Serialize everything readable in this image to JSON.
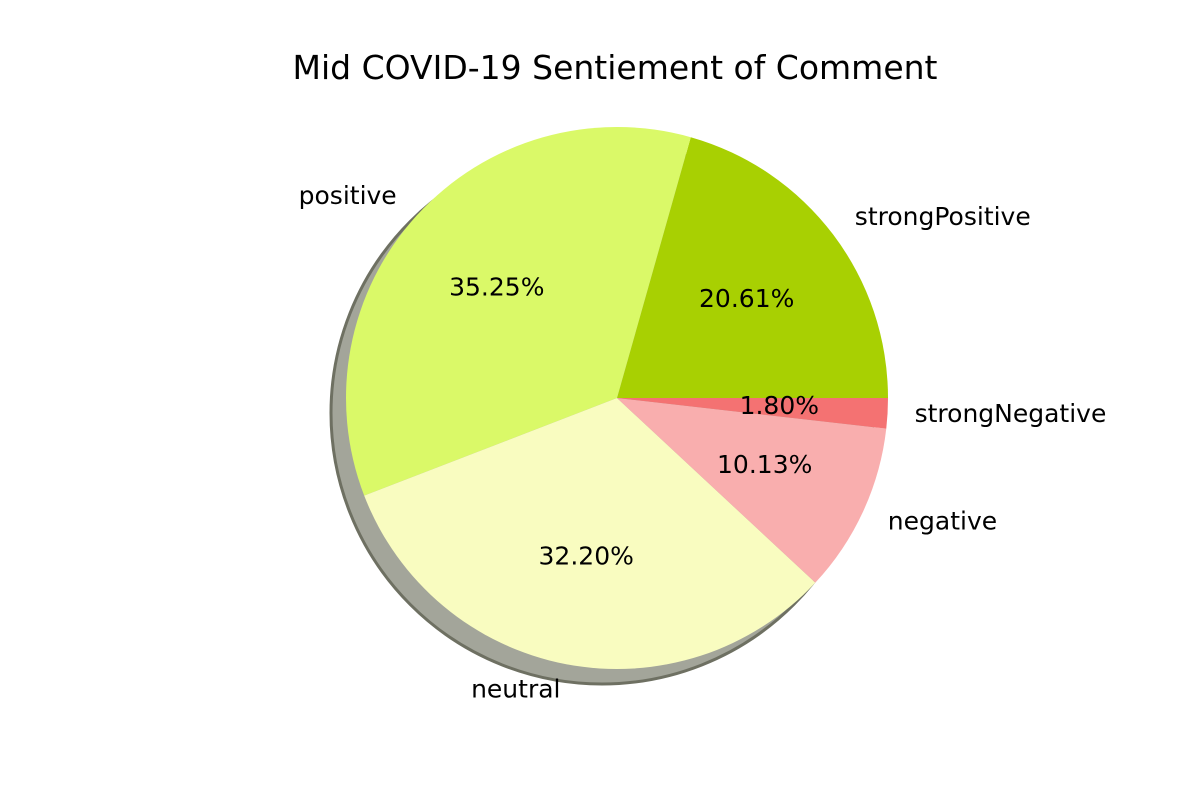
{
  "chart_data": {
    "type": "pie",
    "title": "Mid COVID-19 Sentiement of Comment",
    "start_angle": 0,
    "direction": "counterclockwise",
    "shadow": true,
    "slices": [
      {
        "label": "strongPositive",
        "value": 20.61,
        "pct_label": "20.61%",
        "color": "#a8d002"
      },
      {
        "label": "positive",
        "value": 35.25,
        "pct_label": "35.25%",
        "color": "#daf968"
      },
      {
        "label": "neutral",
        "value": 32.2,
        "pct_label": "32.20%",
        "color": "#f9fcc0"
      },
      {
        "label": "negative",
        "value": 10.13,
        "pct_label": "10.13%",
        "color": "#f9aeae"
      },
      {
        "label": "strongNegative",
        "value": 1.8,
        "pct_label": "1.80%",
        "color": "#f47272"
      }
    ]
  }
}
